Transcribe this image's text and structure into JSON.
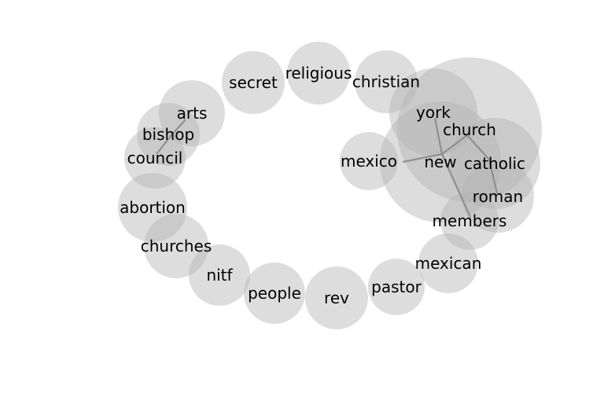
{
  "diagram": {
    "nodes": [
      {
        "id": "religious",
        "label": "religious"
      },
      {
        "id": "christian",
        "label": "christian"
      },
      {
        "id": "secret",
        "label": "secret"
      },
      {
        "id": "arts",
        "label": "arts"
      },
      {
        "id": "bishop",
        "label": "bishop"
      },
      {
        "id": "council",
        "label": "council"
      },
      {
        "id": "abortion",
        "label": "abortion"
      },
      {
        "id": "churches",
        "label": "churches"
      },
      {
        "id": "nitf",
        "label": "nitf"
      },
      {
        "id": "people",
        "label": "people"
      },
      {
        "id": "rev",
        "label": "rev"
      },
      {
        "id": "pastor",
        "label": "pastor"
      },
      {
        "id": "mexican",
        "label": "mexican"
      },
      {
        "id": "members",
        "label": "members"
      },
      {
        "id": "roman",
        "label": "roman"
      },
      {
        "id": "catholic",
        "label": "catholic"
      },
      {
        "id": "church",
        "label": "church"
      },
      {
        "id": "york",
        "label": "york"
      },
      {
        "id": "new",
        "label": "new"
      },
      {
        "id": "mexico",
        "label": "mexico"
      }
    ],
    "edges": [
      {
        "source": "arts",
        "target": "bishop"
      },
      {
        "source": "bishop",
        "target": "council"
      },
      {
        "source": "york",
        "target": "new"
      },
      {
        "source": "new",
        "target": "church"
      },
      {
        "source": "new",
        "target": "members"
      },
      {
        "source": "new",
        "target": "mexico"
      },
      {
        "source": "church",
        "target": "catholic"
      },
      {
        "source": "catholic",
        "target": "roman"
      }
    ],
    "colors": {
      "node_fill": "#b4b4b4",
      "edge": "#8a8a8a",
      "label": "#000000",
      "background": "#ffffff"
    }
  }
}
